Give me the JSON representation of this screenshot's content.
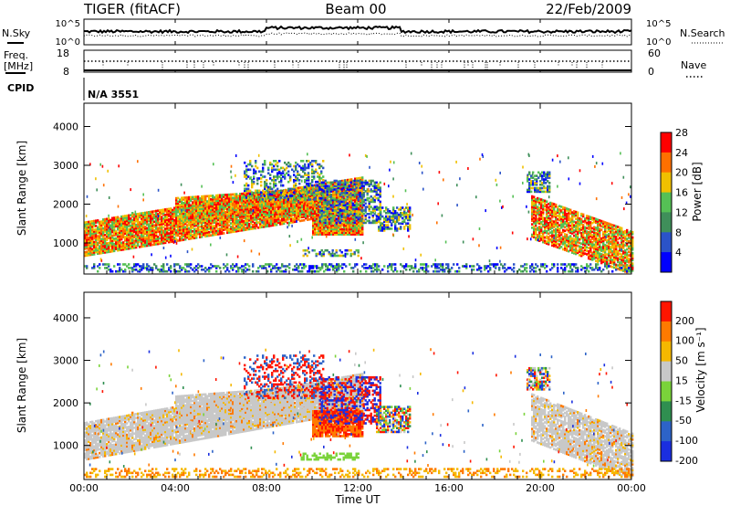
{
  "header": {
    "title": "TIGER (fitACF)",
    "beam": "Beam 00",
    "date": "22/Feb/2009"
  },
  "strip": {
    "nsky_label": "N.Sky",
    "nsky_ticks": [
      "10^5",
      "10^0"
    ],
    "nsearch_label": "N.Search",
    "nsearch_ticks": [
      "10^5",
      "10^0"
    ],
    "freq_label_1": "Freq.",
    "freq_label_2": "[MHz]",
    "freq_ticks": [
      "18",
      "8"
    ],
    "nave_label": "Nave",
    "nave_ticks": [
      "60",
      "0"
    ],
    "cpid_label": "CPID",
    "cpid_value": "N/A 3551"
  },
  "chart_data": [
    {
      "type": "heatmap",
      "name": "power",
      "ylabel": "Slant Range [km]",
      "yticks": [
        "1000",
        "2000",
        "3000",
        "4000"
      ],
      "ylim": [
        200,
        4600
      ],
      "xlim": [
        0,
        24
      ],
      "colorbar_label": "Power [dB]",
      "colorbar_ticks": [
        "4",
        "8",
        "12",
        "16",
        "20",
        "24",
        "28"
      ],
      "colorbar_colors": [
        "#0000ff",
        "#2b53c8",
        "#3f8f5a",
        "#55c055",
        "#f0c000",
        "#ff7000",
        "#ff0000"
      ]
    },
    {
      "type": "heatmap",
      "name": "velocity",
      "ylabel": "Slant Range [km]",
      "yticks": [
        "1000",
        "2000",
        "3000",
        "4000"
      ],
      "ylim": [
        200,
        4600
      ],
      "xlim": [
        0,
        24
      ],
      "colorbar_label": "Velocity [m s⁻¹]",
      "colorbar_ticks": [
        "200",
        "100",
        "50",
        "15",
        "-15",
        "-50",
        "-100",
        "-200"
      ],
      "colorbar_colors": [
        "#1a2ee0",
        "#2d63c8",
        "#2f8f50",
        "#7ad33a",
        "#c8c8c8",
        "#f5b800",
        "#ff7a00",
        "#ff1500"
      ]
    }
  ],
  "xaxis": {
    "label": "Time UT",
    "ticks": [
      "00:00",
      "04:00",
      "08:00",
      "12:00",
      "16:00",
      "20:00",
      "00:00"
    ]
  }
}
